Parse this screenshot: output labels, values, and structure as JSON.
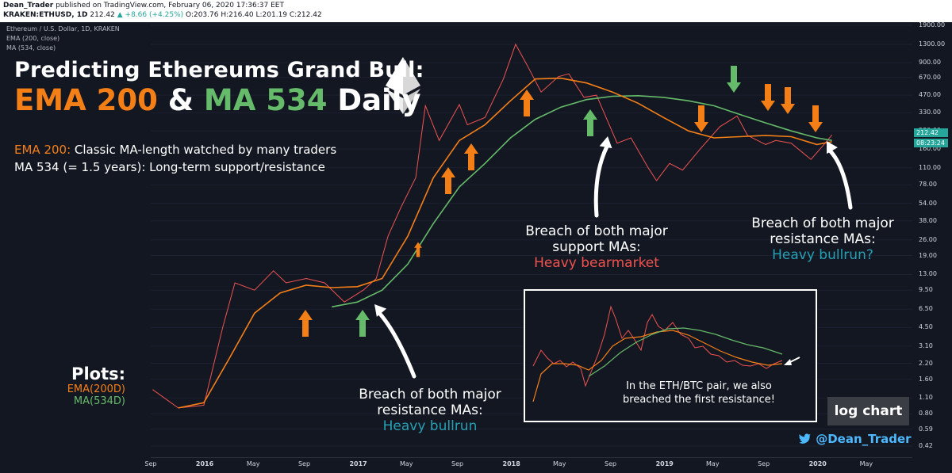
{
  "header": {
    "publisher": "Dean_Trader",
    "published_text": "published on TradingView.com, February 06, 2020 17:36:37 EET",
    "symbol": "KRAKEN:ETHUSD, 1D",
    "last": "212.42",
    "change": "▲ +8.66 (+4.25%)",
    "ohlc": "O:203.76 H:216.40 L:201.19 C:212.42"
  },
  "info_lines": [
    "Ethereum / U.S. Dollar, 1D, KRAKEN",
    "EMA (200, close)",
    "MA (534, close)"
  ],
  "title": {
    "line1": "Predicting Ethereums Grand Bull:",
    "ema": "EMA 200",
    "amp": " & ",
    "ma": "MA 534",
    "daily": " Daily"
  },
  "legend": {
    "ema_key": "EMA 200:",
    "ema_text": " Classic MA-length watched by many traders",
    "ma_text": "MA 534 (= 1.5 years): Long-term support/resistance"
  },
  "annotations": [
    {
      "line1": "Breach of both major",
      "line2": "support MAs:",
      "line3": "Heavy bearmarket"
    },
    {
      "line1": "Breach of both major",
      "line2": "resistance MAs:",
      "line3": "Heavy bullrun?"
    },
    {
      "line1": "Breach of both major",
      "line2": "resistance MAs:",
      "line3": "Heavy bullrun"
    }
  ],
  "plots": {
    "title": "Plots:",
    "ema": "EMA(200D)",
    "ma": "MA(534D)"
  },
  "inset_text": "In the ETH/BTC pair, we also breached the first resistance!",
  "badge": "log chart",
  "twitter": "@Dean_Trader",
  "colors": {
    "ema": "#f57f17",
    "ma": "#66bb6a",
    "candles": "#ef5350",
    "arrow_orange": "#f57f17",
    "arrow_green": "#66bb6a"
  },
  "icons": [
    "ethereum-logo-icon",
    "twitter-bird-icon",
    "arrow-up-icon",
    "arrow-down-icon"
  ],
  "chart_data": {
    "type": "line",
    "title": "Ethereum / U.S. Dollar, 1D, KRAKEN",
    "scale": "log",
    "y_ticks": [
      "1900.00",
      "1300.00",
      "900.00",
      "670.00",
      "470.00",
      "330.00",
      "230.00",
      "160.00",
      "110.00",
      "78.00",
      "54.00",
      "38.00",
      "26.00",
      "19.00",
      "13.00",
      "9.50",
      "6.50",
      "4.50",
      "3.10",
      "2.20",
      "1.60",
      "1.10",
      "0.80",
      "0.59",
      "0.42"
    ],
    "price_labels": [
      "212.42",
      "08:23:24"
    ],
    "x_ticks": [
      "Sep",
      "2016",
      "May",
      "Sep",
      "2017",
      "May",
      "Sep",
      "2018",
      "May",
      "Sep",
      "2019",
      "May",
      "Sep",
      "2020",
      "May"
    ],
    "series": [
      {
        "name": "EMA (200, close)",
        "color": "#f57f17",
        "x": [
          "2015-11-01",
          "2016-01-01",
          "2016-03-01",
          "2016-05-01",
          "2016-07-01",
          "2016-09-01",
          "2016-11-01",
          "2017-01-01",
          "2017-03-01",
          "2017-05-01",
          "2017-07-01",
          "2017-09-01",
          "2017-11-01",
          "2018-01-01",
          "2018-03-01",
          "2018-05-01",
          "2018-07-01",
          "2018-09-01",
          "2018-11-01",
          "2019-01-01",
          "2019-03-01",
          "2019-05-01",
          "2019-07-01",
          "2019-09-01",
          "2019-11-01",
          "2020-01-01",
          "2020-02-06"
        ],
        "values": [
          0.9,
          1.0,
          2.4,
          6.0,
          9.0,
          10.5,
          10.0,
          10.2,
          12.0,
          28,
          90,
          190,
          260,
          420,
          650,
          660,
          600,
          500,
          400,
          300,
          230,
          200,
          205,
          210,
          205,
          175,
          185
        ]
      },
      {
        "name": "MA (534, close)",
        "color": "#66bb6a",
        "x": [
          "2016-11-01",
          "2017-01-01",
          "2017-03-01",
          "2017-05-01",
          "2017-07-01",
          "2017-09-01",
          "2017-11-01",
          "2018-01-01",
          "2018-03-01",
          "2018-05-01",
          "2018-07-01",
          "2018-09-01",
          "2018-11-01",
          "2019-01-01",
          "2019-03-01",
          "2019-05-01",
          "2019-07-01",
          "2019-09-01",
          "2019-11-01",
          "2020-01-01",
          "2020-02-06"
        ],
        "values": [
          6.8,
          7.5,
          9.5,
          16,
          36,
          75,
          120,
          200,
          290,
          370,
          430,
          460,
          465,
          450,
          420,
          380,
          320,
          270,
          230,
          200,
          190
        ]
      },
      {
        "name": "ETHUSD close",
        "color": "#ef5350",
        "x": [
          "2015-09-01",
          "2015-11-01",
          "2016-01-01",
          "2016-02-15",
          "2016-03-15",
          "2016-05-01",
          "2016-06-15",
          "2016-07-15",
          "2016-09-01",
          "2016-10-15",
          "2016-12-01",
          "2017-01-15",
          "2017-02-15",
          "2017-03-15",
          "2017-04-15",
          "2017-05-20",
          "2017-06-12",
          "2017-07-15",
          "2017-09-01",
          "2017-09-20",
          "2017-11-01",
          "2017-12-15",
          "2018-01-13",
          "2018-02-10",
          "2018-03-15",
          "2018-04-25",
          "2018-05-20",
          "2018-06-25",
          "2018-07-25",
          "2018-09-12",
          "2018-10-15",
          "2018-11-25",
          "2018-12-15",
          "2019-01-15",
          "2019-02-15",
          "2019-04-01",
          "2019-05-15",
          "2019-06-25",
          "2019-07-20",
          "2019-09-01",
          "2019-09-25",
          "2019-11-01",
          "2019-12-18",
          "2020-01-15",
          "2020-02-06"
        ],
        "values": [
          1.3,
          0.9,
          0.95,
          4.5,
          11,
          9.5,
          14,
          11,
          12,
          11,
          7.5,
          9.5,
          12,
          28,
          50,
          90,
          380,
          190,
          390,
          260,
          300,
          650,
          1300,
          850,
          500,
          680,
          720,
          450,
          470,
          180,
          200,
          110,
          85,
          120,
          105,
          165,
          250,
          310,
          210,
          175,
          190,
          180,
          130,
          170,
          212
        ]
      }
    ]
  }
}
